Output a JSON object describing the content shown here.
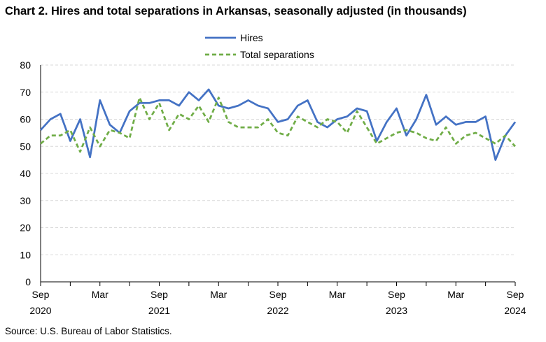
{
  "chart_data": {
    "type": "line",
    "title": "Chart 2. Hires and total separations in Arkansas, seasonally adjusted (in thousands)",
    "xlabel": "",
    "ylabel": "",
    "ylim": [
      0,
      80
    ],
    "yticks": [
      0,
      10,
      20,
      30,
      40,
      50,
      60,
      70,
      80
    ],
    "grid": true,
    "legend_position": "top-center",
    "x": [
      "2020-09",
      "2020-10",
      "2020-11",
      "2020-12",
      "2021-01",
      "2021-02",
      "2021-03",
      "2021-04",
      "2021-05",
      "2021-06",
      "2021-07",
      "2021-08",
      "2021-09",
      "2021-10",
      "2021-11",
      "2021-12",
      "2022-01",
      "2022-02",
      "2022-03",
      "2022-04",
      "2022-05",
      "2022-06",
      "2022-07",
      "2022-08",
      "2022-09",
      "2022-10",
      "2022-11",
      "2022-12",
      "2023-01",
      "2023-02",
      "2023-03",
      "2023-04",
      "2023-05",
      "2023-06",
      "2023-07",
      "2023-08",
      "2023-09",
      "2023-10",
      "2023-11",
      "2023-12",
      "2024-01",
      "2024-02",
      "2024-03",
      "2024-04",
      "2024-05",
      "2024-06",
      "2024-07",
      "2024-08",
      "2024-09"
    ],
    "x_tick_labels": [
      {
        "x": "2020-09",
        "month": "Sep",
        "year": "2020"
      },
      {
        "x": "2021-03",
        "month": "Mar",
        "year": ""
      },
      {
        "x": "2021-09",
        "month": "Sep",
        "year": "2021"
      },
      {
        "x": "2022-03",
        "month": "Mar",
        "year": ""
      },
      {
        "x": "2022-09",
        "month": "Sep",
        "year": "2022"
      },
      {
        "x": "2023-03",
        "month": "Mar",
        "year": ""
      },
      {
        "x": "2023-09",
        "month": "Sep",
        "year": "2023"
      },
      {
        "x": "2024-03",
        "month": "Mar",
        "year": ""
      },
      {
        "x": "2024-09",
        "month": "Sep",
        "year": "2024"
      }
    ],
    "series": [
      {
        "name": "Hires",
        "color": "#4472c4",
        "style": "solid",
        "values": [
          56,
          60,
          62,
          52,
          60,
          46,
          67,
          58,
          55,
          63,
          66,
          66,
          67,
          67,
          65,
          70,
          67,
          71,
          65,
          64,
          65,
          67,
          65,
          64,
          59,
          60,
          65,
          67,
          59,
          57,
          60,
          61,
          64,
          63,
          52,
          59,
          64,
          54,
          60,
          69,
          58,
          61,
          58,
          59,
          59,
          61,
          45,
          54,
          59
        ]
      },
      {
        "name": "Total separations",
        "color": "#70ad47",
        "style": "dashed",
        "values": [
          51,
          54,
          54,
          56,
          48,
          57,
          50,
          56,
          55,
          53,
          68,
          60,
          66,
          56,
          62,
          60,
          65,
          59,
          68,
          59,
          57,
          57,
          57,
          60,
          55,
          54,
          61,
          59,
          57,
          60,
          59,
          55,
          63,
          57,
          51,
          53,
          55,
          56,
          55,
          53,
          52,
          57,
          51,
          54,
          55,
          53,
          51,
          54,
          50
        ]
      }
    ]
  },
  "source_note": "Source: U.S. Bureau of Labor Statistics."
}
